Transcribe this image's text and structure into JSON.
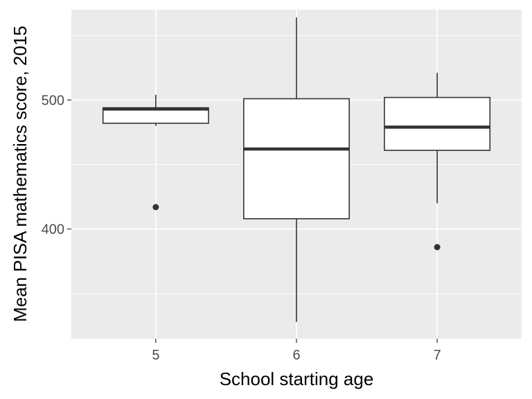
{
  "chart_data": {
    "type": "boxplot",
    "title": "",
    "xlabel": "School starting age",
    "ylabel": "Mean PISA mathematics score, 2015",
    "categories": [
      "5",
      "6",
      "7"
    ],
    "ylim": [
      315,
      570
    ],
    "y_ticks_major": [
      400,
      500
    ],
    "y_ticks_minor": [
      350,
      450,
      550
    ],
    "grid": true,
    "legend": "none",
    "boxes": [
      {
        "category": "5",
        "whisker_low": 480,
        "q1": 482,
        "median": 493,
        "q3": 494,
        "whisker_high": 504,
        "outliers": [
          417
        ]
      },
      {
        "category": "6",
        "whisker_low": 328,
        "q1": 408,
        "median": 462,
        "q3": 501,
        "whisker_high": 564,
        "outliers": []
      },
      {
        "category": "7",
        "whisker_low": 420,
        "q1": 461,
        "median": 479,
        "q3": 502,
        "whisker_high": 521,
        "outliers": [
          386
        ]
      }
    ],
    "colors": {
      "panel_background": "#ebebeb",
      "grid": "#ffffff",
      "box_fill": "#ffffff",
      "box_line": "#333333"
    }
  }
}
